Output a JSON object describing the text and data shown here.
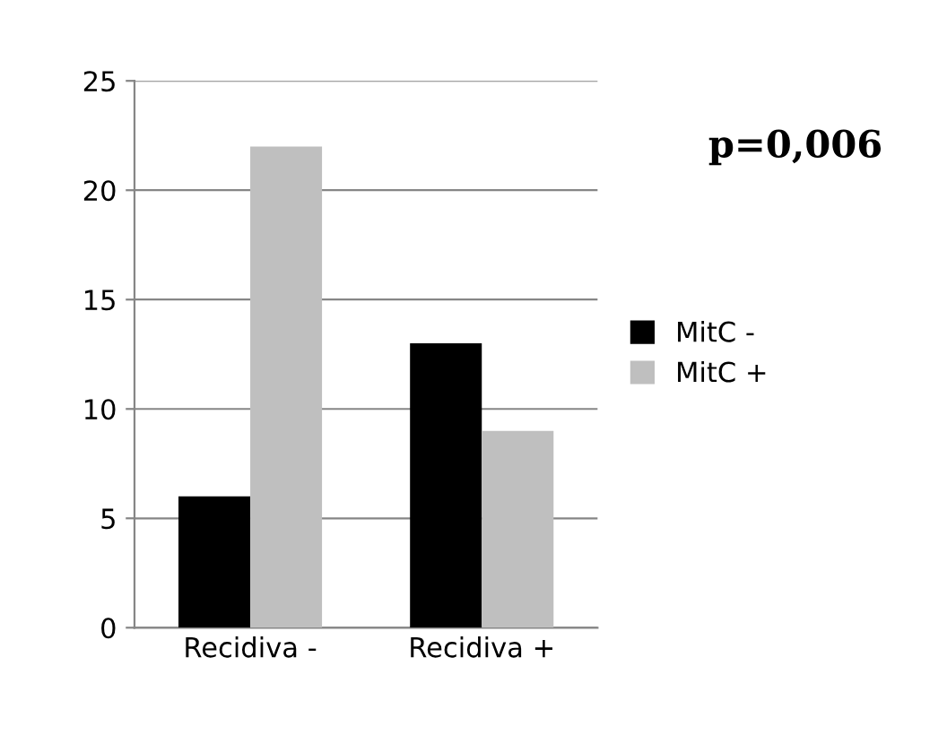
{
  "chart_data": {
    "type": "bar",
    "categories": [
      "Recidiva -",
      "Recidiva +"
    ],
    "series": [
      {
        "name": "MitC -",
        "color": "#000000",
        "values": [
          6,
          13
        ]
      },
      {
        "name": "MitC +",
        "color": "#bfbfbf",
        "values": [
          22,
          9
        ]
      }
    ],
    "ylim": [
      0,
      25
    ],
    "yticks": [
      0,
      5,
      10,
      15,
      20,
      25
    ],
    "grid": "y",
    "legend": "right",
    "annotations": [
      "p=0,006"
    ]
  }
}
